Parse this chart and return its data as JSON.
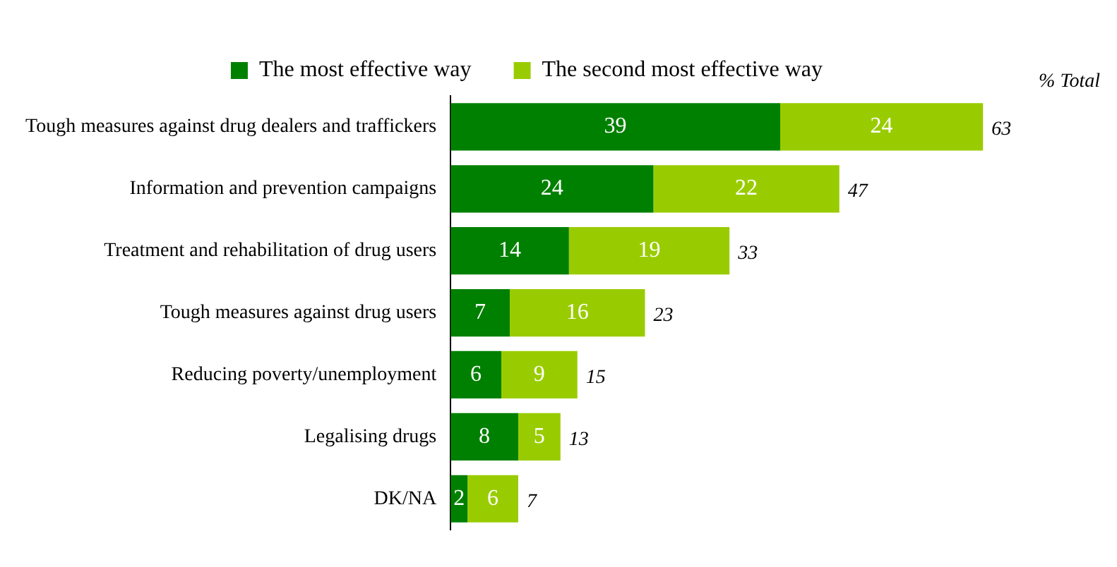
{
  "chart_data": {
    "type": "bar",
    "orientation": "horizontal",
    "stacked": true,
    "categories": [
      "Tough measures against drug dealers and traffickers",
      "Information and prevention campaigns",
      "Treatment and rehabilitation of drug users",
      "Tough measures against drug users",
      "Reducing poverty/unemployment",
      "Legalising drugs",
      "DK/NA"
    ],
    "series": [
      {
        "name": "The most effective way",
        "color": "#008000",
        "values": [
          39,
          24,
          14,
          7,
          6,
          8,
          2
        ]
      },
      {
        "name": "The second most effective way",
        "color": "#99cc00",
        "values": [
          24,
          22,
          19,
          16,
          9,
          5,
          6
        ]
      }
    ],
    "totals": [
      "63",
      "47",
      "33",
      "23",
      "15",
      "13",
      "7"
    ],
    "annotations": [
      "% Total"
    ],
    "data_labels": true,
    "legend": "top",
    "grid": false,
    "tick_labels": "y"
  }
}
